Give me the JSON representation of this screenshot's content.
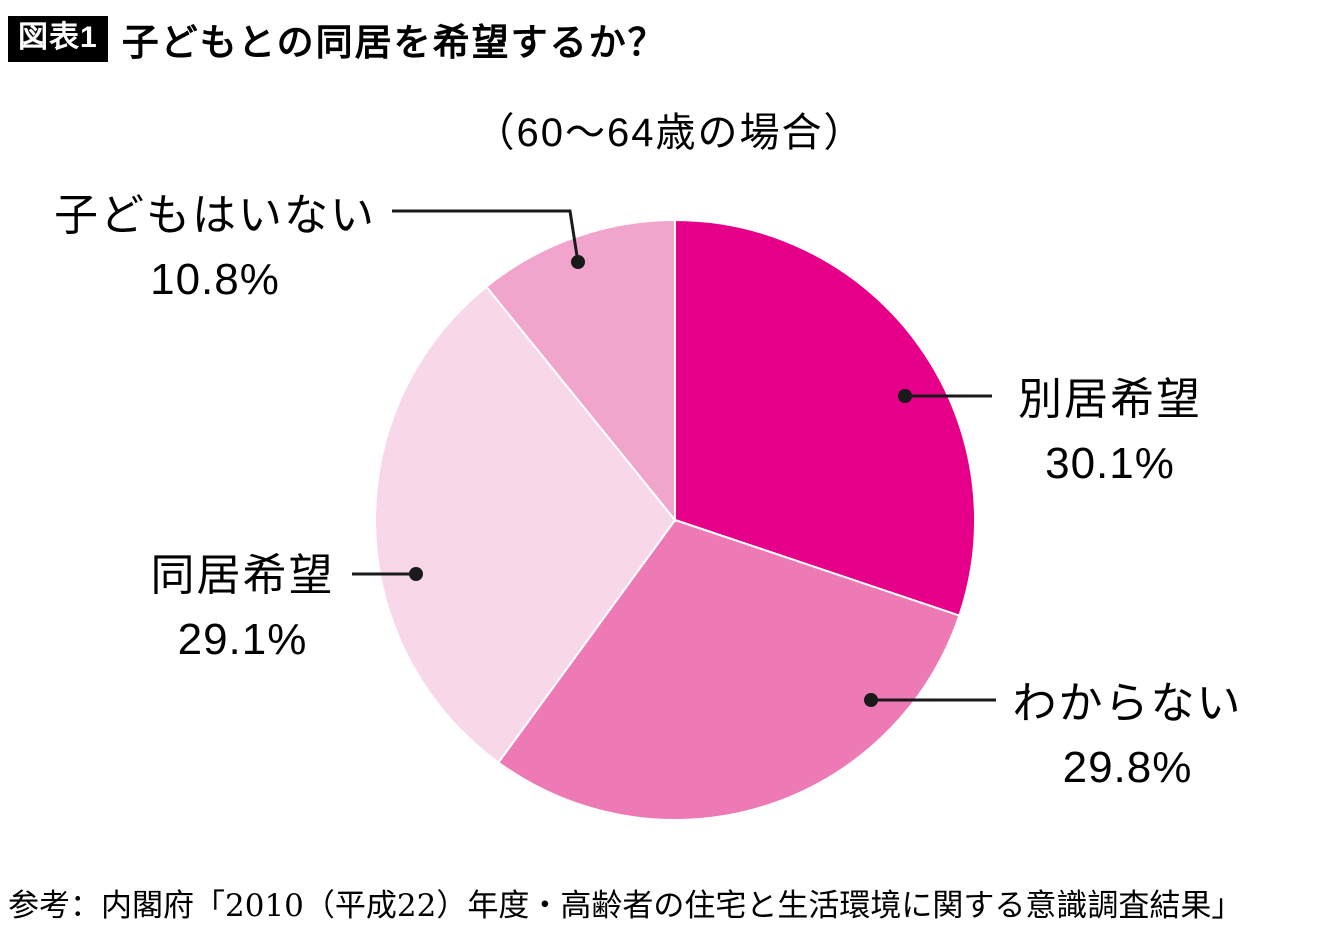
{
  "page": {
    "badge": "図表1",
    "title": "子どもとの同居を希望するか？",
    "subtitle": "（60〜64歳の場合）",
    "source": "参考：内閣府「2010（平成22）年度・高齢者の住宅と生活環境に関する意識調査結果」"
  },
  "chart_data": {
    "type": "pie",
    "title": "（60〜64歳の場合）",
    "start_angle_deg": 0,
    "direction": "clockwise",
    "legend_position": "outside-callouts",
    "slices": [
      {
        "label": "別居希望",
        "value": 30.1,
        "display": "30.1%",
        "color": "#e60089"
      },
      {
        "label": "わからない",
        "value": 29.8,
        "display": "29.8%",
        "color": "#ed7ab5"
      },
      {
        "label": "同居希望",
        "value": 29.1,
        "display": "29.1%",
        "color": "#f8d8e8"
      },
      {
        "label": "子どもはいない",
        "value": 10.8,
        "display": "10.8%",
        "color": "#f1a4cc"
      }
    ]
  }
}
